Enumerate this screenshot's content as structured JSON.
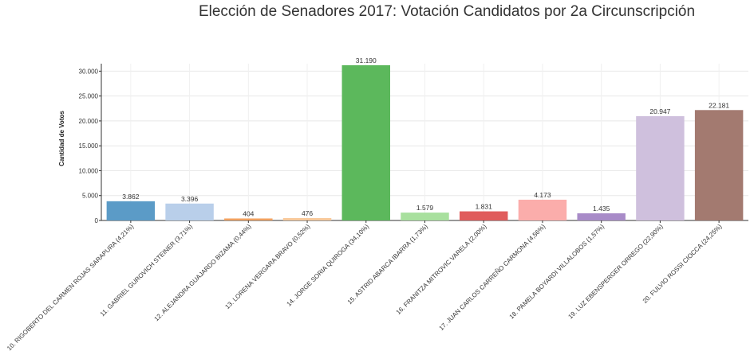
{
  "chart_data": {
    "type": "bar",
    "title": "Elección de Senadores 2017: Votación Candidatos por 2a Circunscripción",
    "ylabel": "Cantidad de Votos",
    "xlabel": "",
    "ylim": [
      0,
      31500
    ],
    "yticks": [
      0,
      5000,
      10000,
      15000,
      20000,
      25000,
      30000
    ],
    "ytick_labels": [
      "0",
      "5.000",
      "10.000",
      "15.000",
      "20.000",
      "25.000",
      "30.000"
    ],
    "grid": true,
    "categories": [
      "10. RIGOBERTO DEL CARMEN ROJAS SARAPURA (4,21%)",
      "11. GABRIEL GUROVICH STEINER (3,71%)",
      "12. ALEJANDRA GUAJARDO BIZAMA (0,44%)",
      "13. LORENA VERGARA BRAVO (0,52%)",
      "14. JORGE SORIA QUIROGA (34,10%)",
      "15. ASTRID ABARCA IBARRA (1,73%)",
      "16. FRANITZA MITROVIC VARELA (2,00%)",
      "17. JUAN CARLOS CARREÑO CARMONA (4,56%)",
      "18. PAMELA BOYARDI VILLALOBOS (1,57%)",
      "19. LUZ EBENSPERGER ORREGO (22,90%)",
      "20. FULVIO ROSSI CIOCCA (24,25%)"
    ],
    "values": [
      3862,
      3396,
      404,
      476,
      31190,
      1579,
      1831,
      4173,
      1435,
      20947,
      22181
    ],
    "value_labels": [
      "3.862",
      "3.396",
      "404",
      "476",
      "31.190",
      "1.579",
      "1.831",
      "4.173",
      "1.435",
      "20.947",
      "22.181"
    ],
    "colors": [
      "#5b9bc7",
      "#b9cfea",
      "#f2a160",
      "#f8c99a",
      "#5cb85c",
      "#a8e09e",
      "#e05c5c",
      "#fbadab",
      "#a88bc8",
      "#cfc0dd",
      "#a37a70"
    ]
  }
}
